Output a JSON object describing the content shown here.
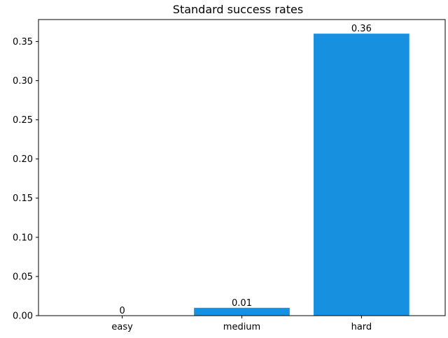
{
  "chart_data": {
    "type": "bar",
    "title": "Standard success rates",
    "xlabel": "",
    "ylabel": "",
    "categories": [
      "easy",
      "medium",
      "hard"
    ],
    "values": [
      0,
      0.01,
      0.36
    ],
    "value_labels": [
      "0",
      "0.01",
      "0.36"
    ],
    "ylim": [
      0,
      0.378
    ],
    "yticks": [
      0,
      0.05,
      0.1,
      0.15,
      0.2,
      0.25,
      0.3,
      0.35
    ],
    "ytick_labels": [
      "0.00",
      "0.05",
      "0.10",
      "0.15",
      "0.20",
      "0.25",
      "0.30",
      "0.35"
    ],
    "bar_color": "#1890e0",
    "grid": false,
    "legend": "none"
  }
}
